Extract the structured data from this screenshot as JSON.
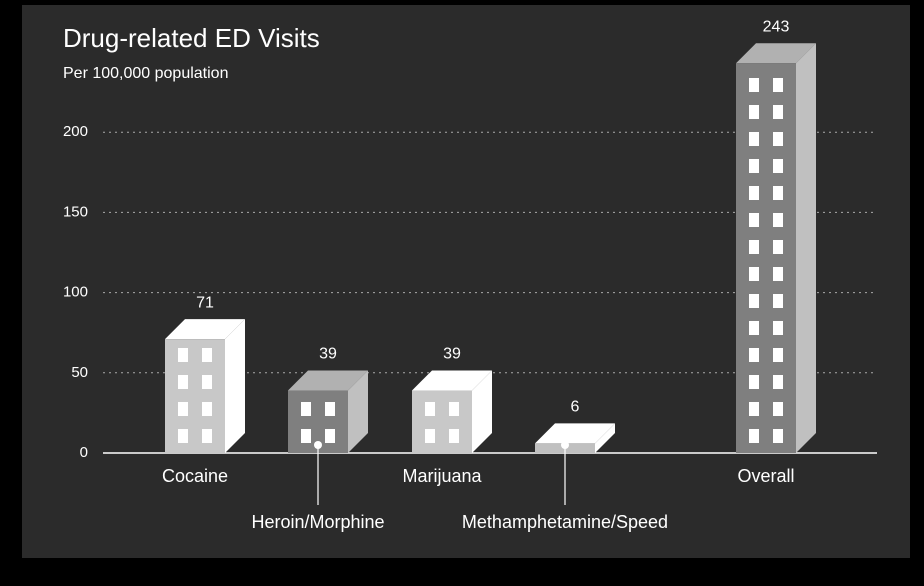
{
  "chart_data": {
    "type": "bar3d",
    "title": "Drug-related ED Visits",
    "subtitle": "Per 100,000 population",
    "categories": [
      "Cocaine",
      "Heroin/Morphine",
      "Marijuana",
      "Methamphetamine/Speed",
      "Overall"
    ],
    "values": [
      71,
      39,
      39,
      6,
      243
    ],
    "colors": [
      "#c8c8c8",
      "#7f7f7f",
      "#c8c8c8",
      "#c0c0c0",
      "#7f7f7f"
    ],
    "ylim": [
      0,
      250
    ],
    "yticks": [
      0,
      50,
      100,
      150,
      200
    ],
    "grid": true
  }
}
